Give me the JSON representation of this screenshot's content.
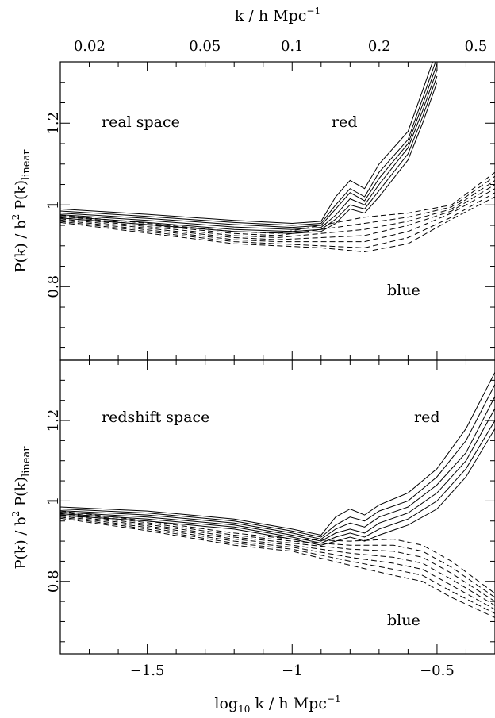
{
  "figure": {
    "top_axis_label": "k / h Mpc",
    "top_axis_label_sup": "−1",
    "top_axis_ticks": [
      "0.02",
      "0.05",
      "0.1",
      "0.2",
      "0.5"
    ],
    "top_axis_tick_values": [
      0.02,
      0.05,
      0.1,
      0.2,
      0.5
    ],
    "bottom_axis_label_pre": "log",
    "bottom_axis_label_sub": "10",
    "bottom_axis_label_post": " k / h Mpc",
    "bottom_axis_label_sup": "−1",
    "y_label_pre": "P(k) / b",
    "y_label_sup": "2",
    "y_label_mid": " P(k)",
    "y_label_sub": "linear"
  },
  "chart_data": [
    {
      "type": "line",
      "panel": "top",
      "annotation": "real space",
      "xlim": [
        -1.8,
        -0.3
      ],
      "ylim": [
        0.62,
        1.35
      ],
      "yticks": [
        0.8,
        1.0,
        1.2
      ],
      "ytick_labels": [
        "0.8",
        "1",
        "1.2"
      ],
      "grid": false,
      "series_groups": [
        {
          "label": "red",
          "line_style": "solid",
          "series": [
            {
              "x": [
                -1.8,
                -1.5,
                -1.2,
                -1.0,
                -0.9,
                -0.85,
                -0.8,
                -0.75,
                -0.7,
                -0.6,
                -0.55,
                -0.5
              ],
              "y": [
                0.99,
                0.977,
                0.962,
                0.955,
                0.96,
                1.02,
                1.06,
                1.04,
                1.1,
                1.18,
                1.28,
                1.38
              ]
            },
            {
              "x": [
                -1.8,
                -1.5,
                -1.2,
                -1.0,
                -0.9,
                -0.85,
                -0.8,
                -0.75,
                -0.7,
                -0.6,
                -0.55,
                -0.5
              ],
              "y": [
                0.985,
                0.972,
                0.957,
                0.95,
                0.955,
                1.0,
                1.04,
                1.02,
                1.08,
                1.16,
                1.26,
                1.36
              ]
            },
            {
              "x": [
                -1.8,
                -1.5,
                -1.2,
                -1.0,
                -0.9,
                -0.85,
                -0.8,
                -0.75,
                -0.7,
                -0.6,
                -0.55,
                -0.5
              ],
              "y": [
                0.98,
                0.967,
                0.952,
                0.945,
                0.95,
                0.99,
                1.03,
                1.01,
                1.065,
                1.15,
                1.245,
                1.345
              ]
            },
            {
              "x": [
                -1.8,
                -1.5,
                -1.2,
                -1.0,
                -0.9,
                -0.85,
                -0.8,
                -0.75,
                -0.7,
                -0.6,
                -0.55,
                -0.5
              ],
              "y": [
                0.976,
                0.962,
                0.946,
                0.94,
                0.945,
                0.975,
                1.015,
                1.0,
                1.05,
                1.14,
                1.23,
                1.33
              ]
            },
            {
              "x": [
                -1.8,
                -1.5,
                -1.2,
                -1.0,
                -0.9,
                -0.85,
                -0.8,
                -0.75,
                -0.7,
                -0.6,
                -0.55,
                -0.5
              ],
              "y": [
                0.972,
                0.957,
                0.94,
                0.935,
                0.94,
                0.965,
                1.0,
                0.99,
                1.035,
                1.125,
                1.215,
                1.315
              ]
            },
            {
              "x": [
                -1.8,
                -1.5,
                -1.2,
                -1.0,
                -0.9,
                -0.85,
                -0.8,
                -0.75,
                -0.7,
                -0.6,
                -0.55,
                -0.5
              ],
              "y": [
                0.968,
                0.952,
                0.935,
                0.93,
                0.935,
                0.955,
                0.99,
                0.98,
                1.02,
                1.11,
                1.2,
                1.3
              ]
            }
          ]
        },
        {
          "label": "blue",
          "line_style": "dashed",
          "series": [
            {
              "x": [
                -1.8,
                -1.5,
                -1.2,
                -1.05,
                -0.9,
                -0.75,
                -0.6,
                -0.45,
                -0.3
              ],
              "y": [
                0.975,
                0.955,
                0.935,
                0.93,
                0.95,
                0.97,
                0.98,
                1.0,
                1.08
              ]
            },
            {
              "x": [
                -1.8,
                -1.5,
                -1.2,
                -1.05,
                -0.9,
                -0.75,
                -0.6,
                -0.45,
                -0.3
              ],
              "y": [
                0.972,
                0.951,
                0.93,
                0.925,
                0.94,
                0.955,
                0.97,
                0.995,
                1.07
              ]
            },
            {
              "x": [
                -1.8,
                -1.5,
                -1.2,
                -1.05,
                -0.9,
                -0.75,
                -0.6,
                -0.45,
                -0.3
              ],
              "y": [
                0.969,
                0.947,
                0.925,
                0.92,
                0.93,
                0.94,
                0.96,
                0.99,
                1.06
              ]
            },
            {
              "x": [
                -1.8,
                -1.5,
                -1.2,
                -1.05,
                -0.9,
                -0.75,
                -0.6,
                -0.45,
                -0.3
              ],
              "y": [
                0.966,
                0.943,
                0.92,
                0.915,
                0.92,
                0.925,
                0.95,
                0.985,
                1.05
              ]
            },
            {
              "x": [
                -1.8,
                -1.5,
                -1.2,
                -1.05,
                -0.9,
                -0.75,
                -0.6,
                -0.45,
                -0.3
              ],
              "y": [
                0.963,
                0.939,
                0.915,
                0.91,
                0.91,
                0.91,
                0.935,
                0.98,
                1.04
              ]
            },
            {
              "x": [
                -1.8,
                -1.5,
                -1.2,
                -1.05,
                -0.9,
                -0.75,
                -0.6,
                -0.45,
                -0.3
              ],
              "y": [
                0.96,
                0.935,
                0.91,
                0.905,
                0.9,
                0.895,
                0.92,
                0.97,
                1.03
              ]
            },
            {
              "x": [
                -1.8,
                -1.5,
                -1.2,
                -1.05,
                -0.9,
                -0.75,
                -0.6,
                -0.45,
                -0.3
              ],
              "y": [
                0.957,
                0.931,
                0.905,
                0.9,
                0.895,
                0.885,
                0.905,
                0.965,
                1.02
              ]
            }
          ]
        }
      ]
    },
    {
      "type": "line",
      "panel": "bottom",
      "annotation": "redshift space",
      "xlim": [
        -1.8,
        -0.3
      ],
      "ylim": [
        0.62,
        1.35
      ],
      "yticks": [
        0.8,
        1.0,
        1.2
      ],
      "ytick_labels": [
        "0.8",
        "1",
        "1.2"
      ],
      "xticks": [
        -1.5,
        -1.0,
        -0.5
      ],
      "xtick_labels": [
        "−1.5",
        "−1",
        "−0.5"
      ],
      "grid": false,
      "series_groups": [
        {
          "label": "red",
          "line_style": "solid",
          "series": [
            {
              "x": [
                -1.8,
                -1.5,
                -1.2,
                -1.0,
                -0.9,
                -0.85,
                -0.8,
                -0.75,
                -0.7,
                -0.6,
                -0.5,
                -0.4,
                -0.3
              ],
              "y": [
                0.985,
                0.975,
                0.955,
                0.93,
                0.915,
                0.96,
                0.98,
                0.965,
                0.99,
                1.02,
                1.08,
                1.18,
                1.32
              ]
            },
            {
              "x": [
                -1.8,
                -1.5,
                -1.2,
                -1.0,
                -0.9,
                -0.85,
                -0.8,
                -0.75,
                -0.7,
                -0.6,
                -0.5,
                -0.4,
                -0.3
              ],
              "y": [
                0.98,
                0.97,
                0.95,
                0.925,
                0.91,
                0.94,
                0.96,
                0.95,
                0.975,
                1.0,
                1.06,
                1.15,
                1.29
              ]
            },
            {
              "x": [
                -1.8,
                -1.5,
                -1.2,
                -1.0,
                -0.9,
                -0.85,
                -0.8,
                -0.75,
                -0.7,
                -0.6,
                -0.5,
                -0.4,
                -0.3
              ],
              "y": [
                0.976,
                0.965,
                0.945,
                0.92,
                0.905,
                0.93,
                0.945,
                0.935,
                0.96,
                0.985,
                1.04,
                1.12,
                1.26
              ]
            },
            {
              "x": [
                -1.8,
                -1.5,
                -1.2,
                -1.0,
                -0.9,
                -0.85,
                -0.8,
                -0.75,
                -0.7,
                -0.6,
                -0.5,
                -0.4,
                -0.3
              ],
              "y": [
                0.972,
                0.96,
                0.94,
                0.915,
                0.9,
                0.92,
                0.93,
                0.92,
                0.945,
                0.97,
                1.02,
                1.1,
                1.23
              ]
            },
            {
              "x": [
                -1.8,
                -1.5,
                -1.2,
                -1.0,
                -0.9,
                -0.85,
                -0.8,
                -0.75,
                -0.7,
                -0.6,
                -0.5,
                -0.4,
                -0.3
              ],
              "y": [
                0.968,
                0.955,
                0.935,
                0.91,
                0.895,
                0.91,
                0.92,
                0.91,
                0.93,
                0.955,
                1.0,
                1.08,
                1.2
              ]
            },
            {
              "x": [
                -1.8,
                -1.5,
                -1.2,
                -1.0,
                -0.9,
                -0.85,
                -0.8,
                -0.75,
                -0.7,
                -0.6,
                -0.5,
                -0.4,
                -0.3
              ],
              "y": [
                0.964,
                0.95,
                0.93,
                0.905,
                0.89,
                0.9,
                0.91,
                0.9,
                0.915,
                0.94,
                0.98,
                1.06,
                1.18
              ]
            }
          ]
        },
        {
          "label": "blue",
          "line_style": "dashed",
          "series": [
            {
              "x": [
                -1.8,
                -1.5,
                -1.2,
                -1.0,
                -0.8,
                -0.65,
                -0.55,
                -0.45,
                -0.3
              ],
              "y": [
                0.975,
                0.95,
                0.92,
                0.905,
                0.9,
                0.905,
                0.89,
                0.85,
                0.77
              ]
            },
            {
              "x": [
                -1.8,
                -1.5,
                -1.2,
                -1.0,
                -0.8,
                -0.65,
                -0.55,
                -0.45,
                -0.3
              ],
              "y": [
                0.972,
                0.946,
                0.915,
                0.9,
                0.89,
                0.89,
                0.875,
                0.835,
                0.76
              ]
            },
            {
              "x": [
                -1.8,
                -1.5,
                -1.2,
                -1.0,
                -0.8,
                -0.65,
                -0.55,
                -0.45,
                -0.3
              ],
              "y": [
                0.969,
                0.942,
                0.91,
                0.895,
                0.88,
                0.875,
                0.86,
                0.82,
                0.75
              ]
            },
            {
              "x": [
                -1.8,
                -1.5,
                -1.2,
                -1.0,
                -0.8,
                -0.65,
                -0.55,
                -0.45,
                -0.3
              ],
              "y": [
                0.966,
                0.938,
                0.905,
                0.89,
                0.87,
                0.86,
                0.845,
                0.805,
                0.74
              ]
            },
            {
              "x": [
                -1.8,
                -1.5,
                -1.2,
                -1.0,
                -0.8,
                -0.65,
                -0.55,
                -0.45,
                -0.3
              ],
              "y": [
                0.963,
                0.934,
                0.9,
                0.885,
                0.86,
                0.845,
                0.83,
                0.79,
                0.73
              ]
            },
            {
              "x": [
                -1.8,
                -1.5,
                -1.2,
                -1.0,
                -0.8,
                -0.65,
                -0.55,
                -0.45,
                -0.3
              ],
              "y": [
                0.96,
                0.93,
                0.895,
                0.88,
                0.85,
                0.83,
                0.815,
                0.775,
                0.72
              ]
            },
            {
              "x": [
                -1.8,
                -1.5,
                -1.2,
                -1.0,
                -0.8,
                -0.65,
                -0.55,
                -0.45,
                -0.3
              ],
              "y": [
                0.957,
                0.926,
                0.89,
                0.875,
                0.84,
                0.815,
                0.8,
                0.76,
                0.71
              ]
            }
          ]
        }
      ]
    }
  ]
}
